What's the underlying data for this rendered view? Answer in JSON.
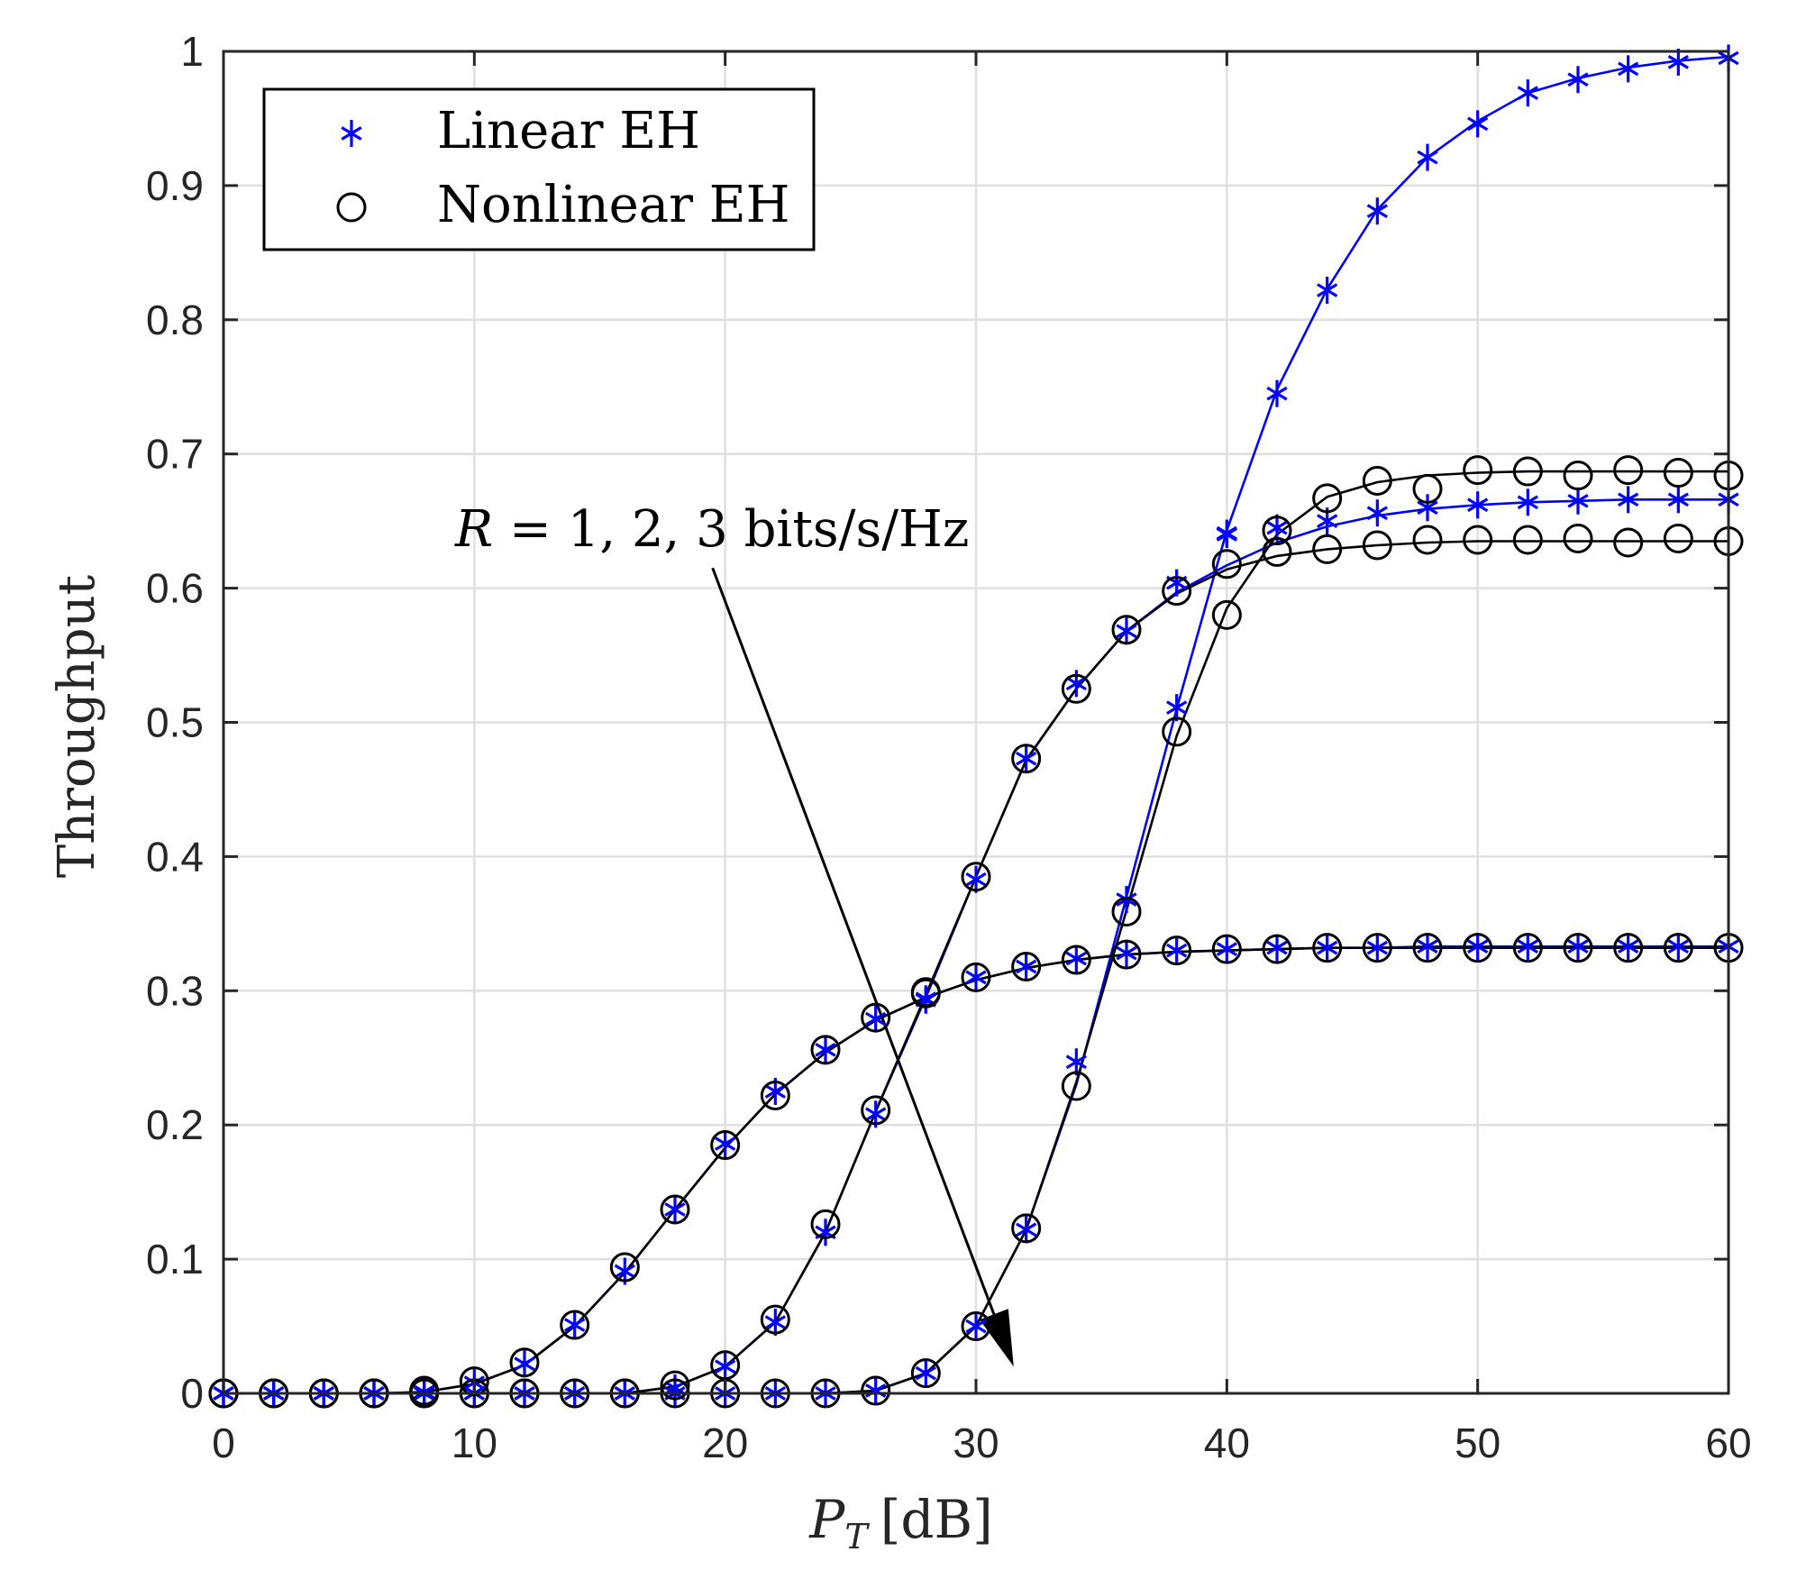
{
  "chart_data": {
    "type": "line",
    "title": "",
    "xlabel": {
      "main": "P",
      "sub": "T",
      "unit": "[dB]"
    },
    "ylabel": "Throughput",
    "xlim": [
      0,
      60
    ],
    "ylim": [
      0,
      1
    ],
    "grid": true,
    "legend_position": "top-left",
    "xticks": [
      0,
      10,
      20,
      30,
      40,
      50,
      60
    ],
    "xtick_labels": [
      "0",
      "10",
      "20",
      "30",
      "40",
      "50",
      "60"
    ],
    "yticks": [
      0,
      0.1,
      0.2,
      0.3,
      0.4,
      0.5,
      0.6,
      0.7,
      0.8,
      0.9,
      1
    ],
    "ytick_labels": [
      "0",
      "0.1",
      "0.2",
      "0.3",
      "0.4",
      "0.5",
      "0.6",
      "0.7",
      "0.8",
      "0.9",
      "1"
    ],
    "legend": [
      {
        "label": "Linear EH",
        "marker": "asterisk",
        "color": "#0000ff"
      },
      {
        "label": "Nonlinear EH",
        "marker": "circle",
        "color": "#000000"
      }
    ],
    "annotation": {
      "text_R": "R",
      "text_rest": " = 1, 2, 3 bits/s/Hz",
      "arrow_from": [
        19.5,
        0.615
      ],
      "arrow_to": [
        31.5,
        0.02
      ]
    },
    "x": [
      0,
      2,
      4,
      6,
      8,
      10,
      12,
      14,
      16,
      18,
      20,
      22,
      24,
      26,
      28,
      30,
      32,
      34,
      36,
      38,
      40,
      42,
      44,
      46,
      48,
      50,
      52,
      54,
      56,
      58,
      60
    ],
    "series": [
      {
        "name": "Linear EH, R = 1 (theory)",
        "kind": "line",
        "color": "#0000ff",
        "group": "linear",
        "values": [
          0,
          0,
          0,
          0,
          0.001,
          0.007,
          0.021,
          0.05,
          0.09,
          0.137,
          0.183,
          0.223,
          0.254,
          0.278,
          0.295,
          0.308,
          0.317,
          0.323,
          0.327,
          0.329,
          0.33,
          0.331,
          0.332,
          0.332,
          0.333,
          0.333,
          0.333,
          0.333,
          0.333,
          0.333,
          0.333
        ]
      },
      {
        "name": "Linear EH, R = 1 (simulation)",
        "kind": "asterisk",
        "color": "#0000ff",
        "group": "linear",
        "values": [
          0,
          0,
          0,
          0,
          0.001,
          0.008,
          0.022,
          0.051,
          0.091,
          0.137,
          0.186,
          0.225,
          0.256,
          0.279,
          0.294,
          0.31,
          0.318,
          0.324,
          0.328,
          0.33,
          0.331,
          0.332,
          0.332,
          0.332,
          0.333,
          0.333,
          0.333,
          0.333,
          0.333,
          0.333,
          0.333
        ]
      },
      {
        "name": "Linear EH, R = 2 (theory)",
        "kind": "line",
        "color": "#0000ff",
        "group": "linear",
        "values": [
          0,
          0,
          0,
          0,
          0,
          0,
          0,
          0,
          0,
          0.005,
          0.02,
          0.053,
          0.12,
          0.21,
          0.295,
          0.385,
          0.472,
          0.525,
          0.568,
          0.597,
          0.617,
          0.634,
          0.646,
          0.654,
          0.659,
          0.662,
          0.664,
          0.665,
          0.666,
          0.666,
          0.666
        ]
      },
      {
        "name": "Linear EH, R = 2 (simulation)",
        "kind": "asterisk",
        "color": "#0000ff",
        "group": "linear",
        "values": [
          0,
          0,
          0,
          0,
          0,
          0,
          0,
          0,
          0,
          0.004,
          0.02,
          0.053,
          0.12,
          0.208,
          0.293,
          0.383,
          0.473,
          0.529,
          0.568,
          0.604,
          0.64,
          0.645,
          0.65,
          0.656,
          0.66,
          0.662,
          0.664,
          0.665,
          0.666,
          0.666,
          0.666
        ]
      },
      {
        "name": "Linear EH, R = 3 (theory)",
        "kind": "line",
        "color": "#0000ff",
        "group": "linear",
        "values": [
          0,
          0,
          0,
          0,
          0,
          0,
          0,
          0,
          0,
          0,
          0,
          0,
          0,
          0.002,
          0.015,
          0.05,
          0.122,
          0.23,
          0.37,
          0.51,
          0.643,
          0.748,
          0.823,
          0.882,
          0.921,
          0.948,
          0.969,
          0.98,
          0.988,
          0.993,
          0.996
        ]
      },
      {
        "name": "Linear EH, R = 3 (simulation)",
        "kind": "asterisk",
        "color": "#0000ff",
        "group": "linear",
        "values": [
          0,
          0,
          0,
          0,
          0,
          0,
          0,
          0,
          0,
          0,
          0,
          0,
          0,
          0.002,
          0.015,
          0.05,
          0.122,
          0.247,
          0.368,
          0.511,
          0.641,
          0.745,
          0.822,
          0.881,
          0.921,
          0.946,
          0.969,
          0.979,
          0.987,
          0.992,
          0.995
        ]
      },
      {
        "name": "Nonlinear EH, R = 1 (theory)",
        "kind": "line",
        "color": "#000000",
        "group": "nonlinear",
        "values": [
          0,
          0,
          0,
          0,
          0.001,
          0.007,
          0.021,
          0.05,
          0.09,
          0.137,
          0.183,
          0.223,
          0.254,
          0.278,
          0.295,
          0.308,
          0.317,
          0.323,
          0.327,
          0.329,
          0.33,
          0.331,
          0.332,
          0.332,
          0.332,
          0.332,
          0.332,
          0.332,
          0.332,
          0.332,
          0.332
        ]
      },
      {
        "name": "Nonlinear EH, R = 1 (simulation)",
        "kind": "circle",
        "color": "#000000",
        "group": "nonlinear",
        "values": [
          0,
          0,
          0,
          0,
          0.002,
          0.009,
          0.023,
          0.051,
          0.094,
          0.137,
          0.185,
          0.222,
          0.256,
          0.28,
          0.298,
          0.31,
          0.318,
          0.323,
          0.327,
          0.33,
          0.331,
          0.331,
          0.332,
          0.332,
          0.332,
          0.332,
          0.332,
          0.332,
          0.332,
          0.332,
          0.332
        ]
      },
      {
        "name": "Nonlinear EH, R = 2 (theory)",
        "kind": "line",
        "color": "#000000",
        "group": "nonlinear",
        "values": [
          0,
          0,
          0,
          0,
          0,
          0,
          0,
          0,
          0,
          0.005,
          0.02,
          0.053,
          0.12,
          0.21,
          0.297,
          0.385,
          0.472,
          0.525,
          0.568,
          0.596,
          0.614,
          0.624,
          0.629,
          0.632,
          0.634,
          0.635,
          0.635,
          0.635,
          0.635,
          0.635,
          0.635
        ]
      },
      {
        "name": "Nonlinear EH, R = 2 (simulation)",
        "kind": "circle",
        "color": "#000000",
        "group": "nonlinear",
        "values": [
          0,
          0,
          0,
          0,
          0,
          0,
          0,
          0,
          0,
          0.006,
          0.021,
          0.055,
          0.126,
          0.211,
          0.299,
          0.385,
          0.473,
          0.525,
          0.569,
          0.598,
          0.618,
          0.627,
          0.629,
          0.632,
          0.636,
          0.636,
          0.636,
          0.637,
          0.634,
          0.637,
          0.635
        ]
      },
      {
        "name": "Nonlinear EH, R = 3 (theory)",
        "kind": "line",
        "color": "#000000",
        "group": "nonlinear",
        "values": [
          0,
          0,
          0,
          0,
          0,
          0,
          0,
          0,
          0,
          0,
          0,
          0,
          0,
          0.002,
          0.015,
          0.05,
          0.122,
          0.232,
          0.36,
          0.49,
          0.585,
          0.64,
          0.668,
          0.679,
          0.684,
          0.686,
          0.687,
          0.687,
          0.687,
          0.687,
          0.687
        ]
      },
      {
        "name": "Nonlinear EH, R = 3 (simulation)",
        "kind": "circle",
        "color": "#000000",
        "group": "nonlinear",
        "values": [
          0,
          0,
          0,
          0,
          0,
          0,
          0,
          0,
          0,
          0,
          0,
          0,
          0,
          0.002,
          0.015,
          0.05,
          0.123,
          0.229,
          0.359,
          0.493,
          0.58,
          0.643,
          0.667,
          0.68,
          0.674,
          0.688,
          0.687,
          0.684,
          0.688,
          0.686,
          0.684
        ]
      }
    ]
  }
}
